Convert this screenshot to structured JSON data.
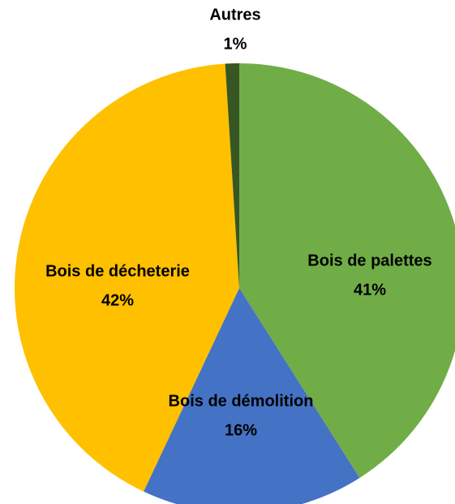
{
  "chart_data": {
    "type": "pie",
    "categories": [
      "Bois de palettes",
      "Bois de démolition",
      "Bois de décheterie",
      "Autres"
    ],
    "values": [
      41,
      16,
      42,
      1
    ],
    "value_labels": [
      "41%",
      "16%",
      "42%",
      "1%"
    ],
    "colors": [
      "#70ad47",
      "#4472c4",
      "#ffc000",
      "#375623"
    ]
  }
}
